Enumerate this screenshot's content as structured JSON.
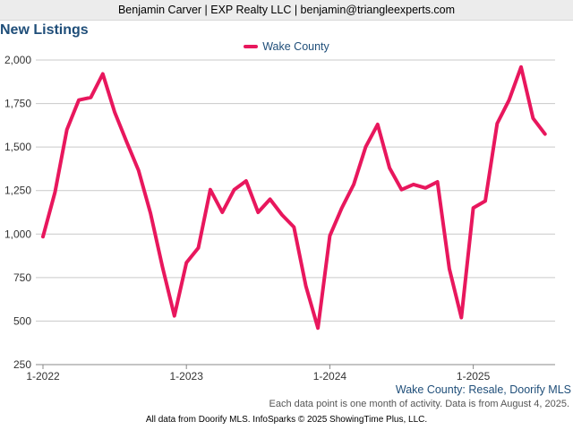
{
  "header": {
    "agent_line": "Benjamin Carver | EXP Realty LLC | benjamin@triangleexperts.com"
  },
  "chart_data": {
    "type": "line",
    "title": "New Listings",
    "legend_position": "top-center",
    "ylim": [
      250,
      2000
    ],
    "y_ticks": [
      250,
      500,
      750,
      1000,
      1250,
      1500,
      1750,
      2000
    ],
    "y_tick_labels": [
      "250",
      "500",
      "750",
      "1,000",
      "1,250",
      "1,500",
      "1,750",
      "2,000"
    ],
    "x_tick_labels": [
      "1-2022",
      "1-2023",
      "1-2024",
      "1-2025"
    ],
    "grid": true,
    "series": [
      {
        "name": "Wake County",
        "color": "#e8175d",
        "values": [
          985,
          1240,
          1600,
          1770,
          1785,
          1920,
          1700,
          1530,
          1365,
          1120,
          810,
          530,
          835,
          920,
          1255,
          1125,
          1255,
          1305,
          1125,
          1200,
          1110,
          1040,
          700,
          460,
          990,
          1150,
          1285,
          1500,
          1630,
          1380,
          1255,
          1285,
          1265,
          1300,
          800,
          520,
          1150,
          1190,
          1635,
          1770,
          1960,
          1665,
          1575
        ]
      }
    ]
  },
  "footer": {
    "source": "Wake County: Resale, Doorify MLS",
    "note": "Each data point is one month of activity. Data is from August 4, 2025.",
    "credit": "All data from Doorify MLS. InfoSparks © 2025 ShowingTime Plus, LLC."
  }
}
